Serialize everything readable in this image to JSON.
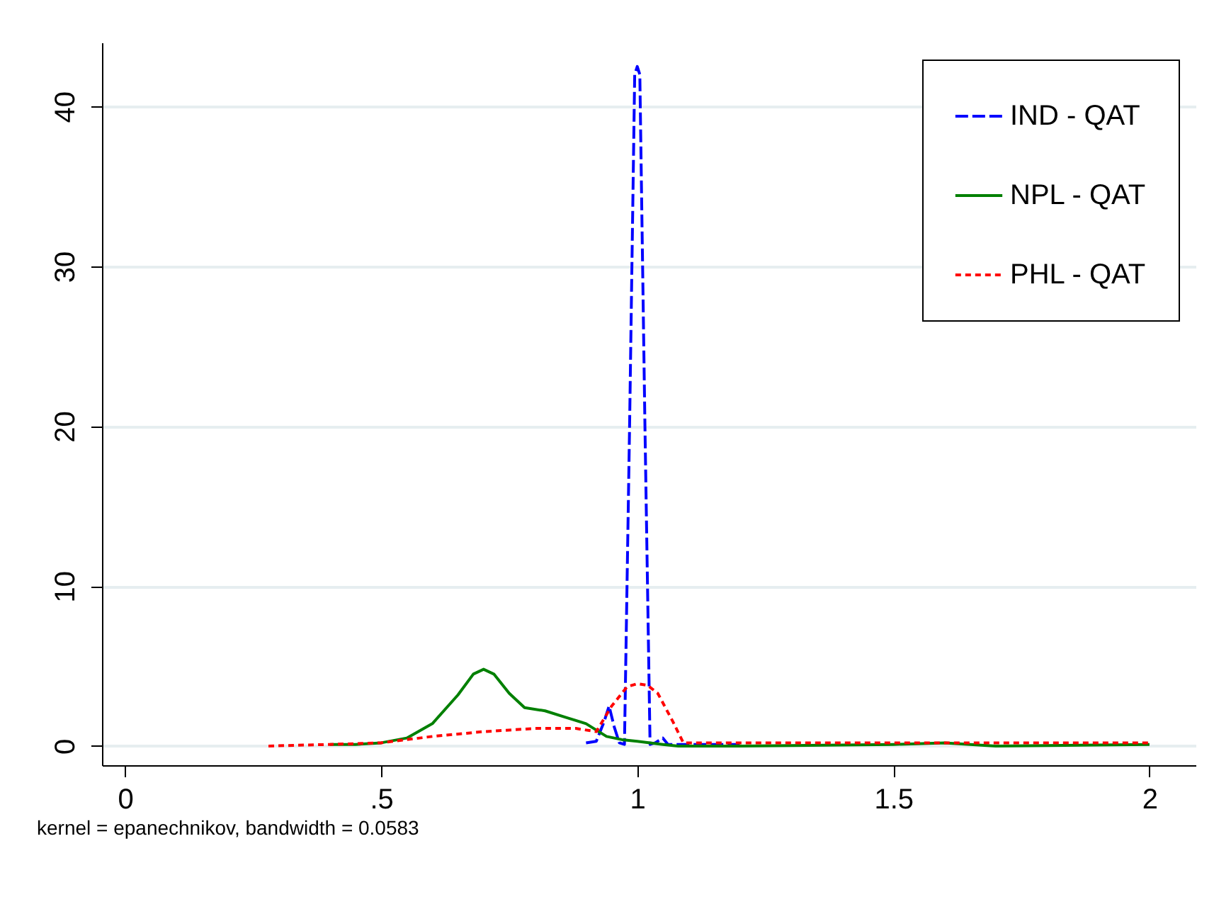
{
  "chart_data": {
    "type": "line",
    "annotations": [
      "kernel = epanechnikov, bandwidth = 0.0583"
    ],
    "xlim": [
      -0.045,
      2.09
    ],
    "ylim": [
      -1.2,
      44
    ],
    "xticks": [
      {
        "value": 0,
        "label": "0"
      },
      {
        "value": 0.5,
        "label": ".5"
      },
      {
        "value": 1,
        "label": "1"
      },
      {
        "value": 1.5,
        "label": "1.5"
      },
      {
        "value": 2,
        "label": "2"
      }
    ],
    "yticks": [
      0,
      10,
      20,
      30,
      40
    ],
    "grid": "y",
    "legend": "top right",
    "series": [
      {
        "name": "IND - QAT",
        "color": "#0000ff",
        "line_style": "dashed",
        "x": [
          0.9,
          0.92,
          0.935,
          0.945,
          0.955,
          0.965,
          0.975,
          0.985,
          0.995,
          1.0,
          1.005,
          1.015,
          1.025,
          1.035,
          1.05,
          1.06,
          1.1,
          1.15,
          1.2
        ],
        "values": [
          0.2,
          0.3,
          1.5,
          2.5,
          1.2,
          0.2,
          0.1,
          20,
          42,
          42.5,
          42,
          20,
          0.1,
          0.2,
          0.5,
          0.1,
          0.1,
          0.1,
          0.1
        ]
      },
      {
        "name": "NPL - QAT",
        "color": "#008000",
        "line_style": "solid",
        "x": [
          0.4,
          0.45,
          0.5,
          0.55,
          0.6,
          0.65,
          0.68,
          0.7,
          0.72,
          0.75,
          0.78,
          0.82,
          0.86,
          0.9,
          0.94,
          0.97,
          1.0,
          1.05,
          1.08,
          1.2,
          1.5,
          1.6,
          1.7,
          2.0
        ],
        "values": [
          0.1,
          0.1,
          0.2,
          0.5,
          1.4,
          3.2,
          4.5,
          4.8,
          4.5,
          3.3,
          2.4,
          2.2,
          1.8,
          1.4,
          0.6,
          0.4,
          0.3,
          0.1,
          0,
          0,
          0.1,
          0.2,
          0,
          0.1
        ]
      },
      {
        "name": "PHL - QAT",
        "color": "#ff0000",
        "line_style": "dotted",
        "x": [
          0.28,
          0.4,
          0.5,
          0.6,
          0.7,
          0.8,
          0.88,
          0.92,
          0.95,
          0.98,
          1.0,
          1.02,
          1.04,
          1.07,
          1.09,
          1.2,
          1.5,
          1.6,
          1.7,
          2.0
        ],
        "values": [
          0,
          0.1,
          0.2,
          0.6,
          0.9,
          1.1,
          1.1,
          0.9,
          2.5,
          3.7,
          3.9,
          3.8,
          3.3,
          1.5,
          0.2,
          0.2,
          0.2,
          0.2,
          0.2,
          0.2
        ]
      }
    ]
  }
}
